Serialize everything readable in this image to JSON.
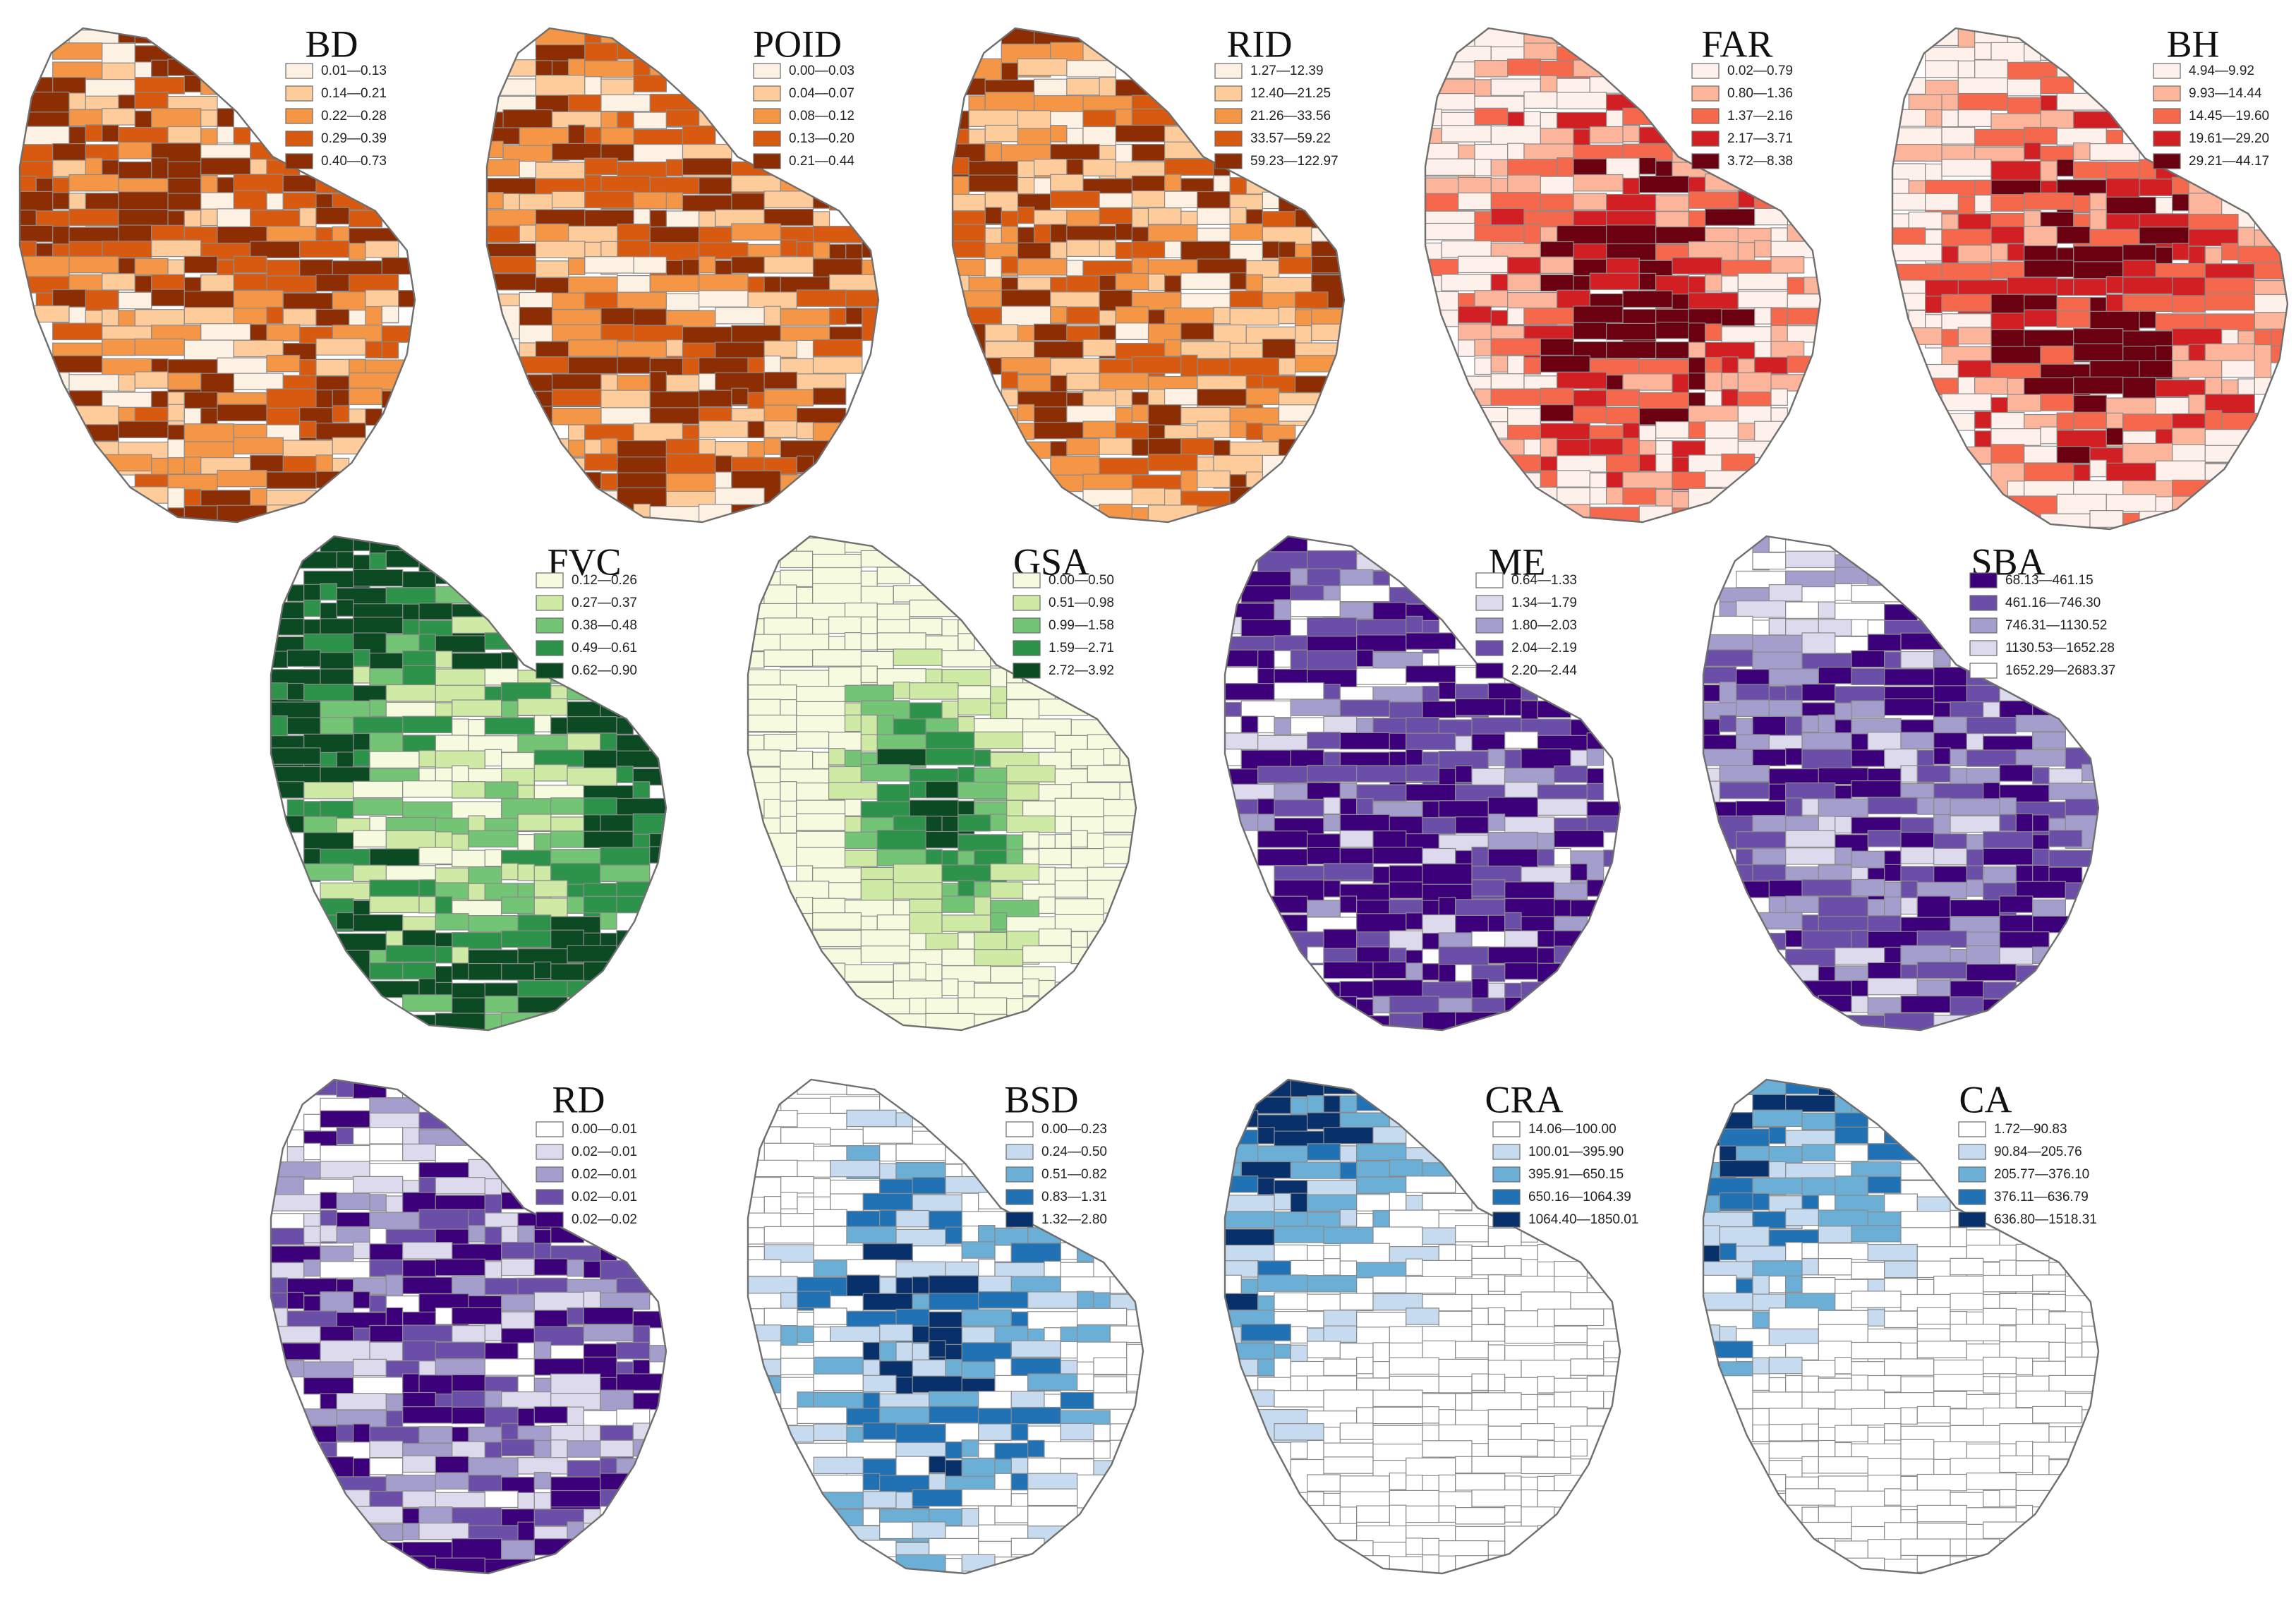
{
  "figure": "choropleth-small-multiples",
  "panels": [
    {
      "key": "bd",
      "title": "BD",
      "ramp": [
        "#fdf1e4",
        "#fdcc9a",
        "#f59546",
        "#d85a10",
        "#8c2d04"
      ],
      "classes": [
        "0.01—0.13",
        "0.14—0.21",
        "0.22—0.28",
        "0.29—0.39",
        "0.40—0.73"
      ]
    },
    {
      "key": "poid",
      "title": "POID",
      "ramp": [
        "#fdf1e4",
        "#fdcc9a",
        "#f59546",
        "#d85a10",
        "#8c2d04"
      ],
      "classes": [
        "0.00—0.03",
        "0.04—0.07",
        "0.08—0.12",
        "0.13—0.20",
        "0.21—0.44"
      ]
    },
    {
      "key": "rid",
      "title": "RID",
      "ramp": [
        "#fdf1e4",
        "#fdcc9a",
        "#f59546",
        "#d85a10",
        "#8c2d04"
      ],
      "classes": [
        "1.27—12.39",
        "12.40—21.25",
        "21.26—33.56",
        "33.57—59.22",
        "59.23—122.97"
      ]
    },
    {
      "key": "far",
      "title": "FAR",
      "ramp": [
        "#fef0eb",
        "#fcb49a",
        "#f6684c",
        "#d21f24",
        "#6b0010"
      ],
      "classes": [
        "0.02—0.79",
        "0.80—1.36",
        "1.37—2.16",
        "2.17—3.71",
        "3.72—8.38"
      ]
    },
    {
      "key": "bh",
      "title": "BH",
      "ramp": [
        "#fef0eb",
        "#fcb49a",
        "#f6684c",
        "#d21f24",
        "#6b0010"
      ],
      "classes": [
        "4.94—9.92",
        "9.93—14.44",
        "14.45—19.60",
        "19.61—29.20",
        "29.21—44.17"
      ]
    },
    {
      "key": "fvc",
      "title": "FVC",
      "ramp": [
        "#f6fbe0",
        "#cfeaa4",
        "#74c476",
        "#2e934a",
        "#0b4a23"
      ],
      "classes": [
        "0.12—0.26",
        "0.27—0.37",
        "0.38—0.48",
        "0.49—0.61",
        "0.62—0.90"
      ]
    },
    {
      "key": "gsa",
      "title": "GSA",
      "ramp": [
        "#f6fbe0",
        "#cfeaa4",
        "#74c476",
        "#2e934a",
        "#0b4a23"
      ],
      "classes": [
        "0.00—0.50",
        "0.51—0.98",
        "0.99—1.58",
        "1.59—2.71",
        "2.72—3.92"
      ]
    },
    {
      "key": "me",
      "title": "ME",
      "ramp": [
        "#ffffff",
        "#dcdaec",
        "#a39ecb",
        "#6a4ea7",
        "#3d007b"
      ],
      "classes": [
        "0.64—1.33",
        "1.34—1.79",
        "1.80—2.03",
        "2.04—2.19",
        "2.20—2.44"
      ]
    },
    {
      "key": "sba",
      "title": "SBA",
      "ramp": [
        "#3d007b",
        "#6a4ea7",
        "#a39ecb",
        "#dcdaec",
        "#ffffff"
      ],
      "classes": [
        "68.13—461.15",
        "461.16—746.30",
        "746.31—1130.52",
        "1130.53—1652.28",
        "1652.29—2683.37"
      ]
    },
    {
      "key": "rd",
      "title": "RD",
      "ramp": [
        "#ffffff",
        "#dcdaec",
        "#a39ecb",
        "#6a4ea7",
        "#3d007b"
      ],
      "classes": [
        "0.00—0.01",
        "0.02—0.01",
        "0.02—0.01",
        "0.02—0.01",
        "0.02—0.02"
      ]
    },
    {
      "key": "bsd",
      "title": "BSD",
      "ramp": [
        "#ffffff",
        "#c6dbef",
        "#6baed6",
        "#2171b5",
        "#08306b"
      ],
      "classes": [
        "0.00—0.23",
        "0.24—0.50",
        "0.51—0.82",
        "0.83—1.31",
        "1.32—2.80"
      ]
    },
    {
      "key": "cra",
      "title": "CRA",
      "ramp": [
        "#ffffff",
        "#c6dbef",
        "#6baed6",
        "#2171b5",
        "#08306b"
      ],
      "classes": [
        "14.06—100.00",
        "100.01—395.90",
        "395.91—650.15",
        "650.16—1064.39",
        "1064.40—1850.01"
      ]
    },
    {
      "key": "ca",
      "title": "CA",
      "ramp": [
        "#ffffff",
        "#c6dbef",
        "#6baed6",
        "#2171b5",
        "#08306b"
      ],
      "classes": [
        "1.72—90.83",
        "90.84—205.76",
        "205.77—376.10",
        "376.11—636.79",
        "636.80—1518.31"
      ]
    }
  ]
}
